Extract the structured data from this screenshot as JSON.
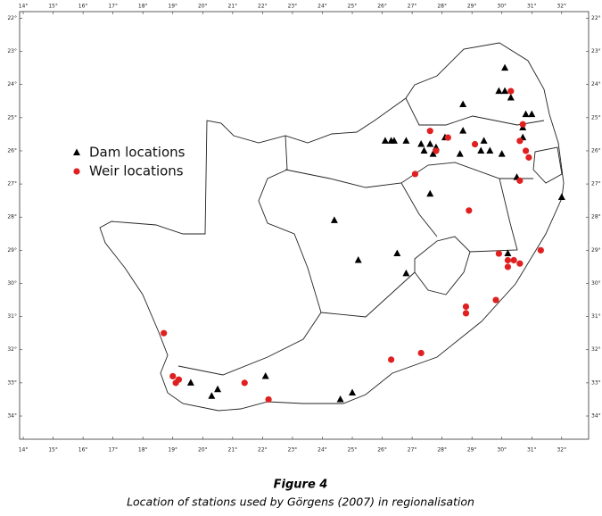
{
  "chart_data": {
    "type": "scatter",
    "series": [
      {
        "name": "Dam locations",
        "color": "#000000",
        "marker": "triangle",
        "x": [
          30.1,
          29.9,
          30.1,
          30.3,
          30.7,
          31.0,
          30.8,
          28.7,
          28.7,
          29.4,
          29.3,
          29.6,
          30.0,
          30.7,
          30.5,
          32.0,
          26.1,
          26.3,
          26.4,
          26.8,
          27.3,
          27.4,
          27.7,
          27.6,
          27.8,
          28.6,
          28.1,
          27.6,
          24.4,
          25.2,
          26.5,
          26.8,
          30.2,
          19.6,
          20.5,
          20.3,
          22.1,
          24.6,
          25.0
        ],
        "y": [
          23.5,
          24.2,
          24.2,
          24.4,
          25.3,
          24.9,
          24.9,
          24.6,
          25.4,
          25.7,
          26.0,
          26.0,
          26.1,
          25.6,
          26.8,
          27.4,
          25.7,
          25.7,
          25.7,
          25.7,
          25.8,
          26.0,
          26.1,
          25.8,
          25.9,
          26.1,
          25.6,
          27.3,
          28.1,
          29.3,
          29.1,
          29.7,
          29.1,
          33.0,
          33.2,
          33.4,
          32.8,
          33.5,
          33.3
        ]
      },
      {
        "name": "Weir locations",
        "color": "#e02020",
        "marker": "circle",
        "x": [
          30.3,
          30.7,
          30.6,
          30.8,
          30.9,
          30.6,
          29.1,
          28.2,
          27.6,
          27.8,
          27.1,
          28.9,
          29.9,
          30.2,
          30.4,
          30.6,
          30.2,
          31.3,
          29.8,
          28.8,
          28.8,
          18.7,
          19.0,
          19.2,
          19.1,
          21.4,
          22.2,
          26.3,
          27.3
        ],
        "y": [
          24.2,
          25.2,
          25.7,
          26.0,
          26.2,
          26.9,
          25.8,
          25.6,
          25.4,
          26.0,
          26.7,
          27.8,
          29.1,
          29.3,
          29.3,
          29.4,
          29.5,
          29.0,
          30.5,
          30.7,
          30.9,
          31.5,
          32.8,
          32.9,
          33.0,
          33.0,
          33.5,
          32.3,
          32.1
        ]
      }
    ],
    "xlim": [
      13.88,
      32.9
    ],
    "ylim": [
      21.8,
      34.7
    ],
    "y_inverted": true,
    "xticks": [
      {
        "value": 14,
        "label": "14°"
      },
      {
        "value": 15,
        "label": "15°"
      },
      {
        "value": 16,
        "label": "16°"
      },
      {
        "value": 17,
        "label": "17°"
      },
      {
        "value": 18,
        "label": "18°"
      },
      {
        "value": 19,
        "label": "19°"
      },
      {
        "value": 20,
        "label": "20°"
      },
      {
        "value": 21,
        "label": "21°"
      },
      {
        "value": 22,
        "label": "22°"
      },
      {
        "value": 23,
        "label": "23°"
      },
      {
        "value": 24,
        "label": "24°"
      },
      {
        "value": 25,
        "label": "25°"
      },
      {
        "value": 26,
        "label": "26°"
      },
      {
        "value": 27,
        "label": "27°"
      },
      {
        "value": 28,
        "label": "28°"
      },
      {
        "value": 29,
        "label": "29°"
      },
      {
        "value": 30,
        "label": "30°"
      },
      {
        "value": 31,
        "label": "31°"
      },
      {
        "value": 32,
        "label": "32°"
      }
    ],
    "yticks": [
      {
        "value": 22,
        "label": "22°"
      },
      {
        "value": 23,
        "label": "23°"
      },
      {
        "value": 24,
        "label": "24°"
      },
      {
        "value": 25,
        "label": "25°"
      },
      {
        "value": 26,
        "label": "26°"
      },
      {
        "value": 27,
        "label": "27°"
      },
      {
        "value": 28,
        "label": "28°"
      },
      {
        "value": 29,
        "label": "29°"
      },
      {
        "value": 30,
        "label": "30°"
      },
      {
        "value": 31,
        "label": "31°"
      },
      {
        "value": 32,
        "label": "32°"
      },
      {
        "value": 33,
        "label": "33°"
      },
      {
        "value": 34,
        "label": "34°"
      }
    ]
  },
  "caption": {
    "title": "Figure 4",
    "text": "Location of stations used by Görgens (2007) in regionalisation"
  }
}
